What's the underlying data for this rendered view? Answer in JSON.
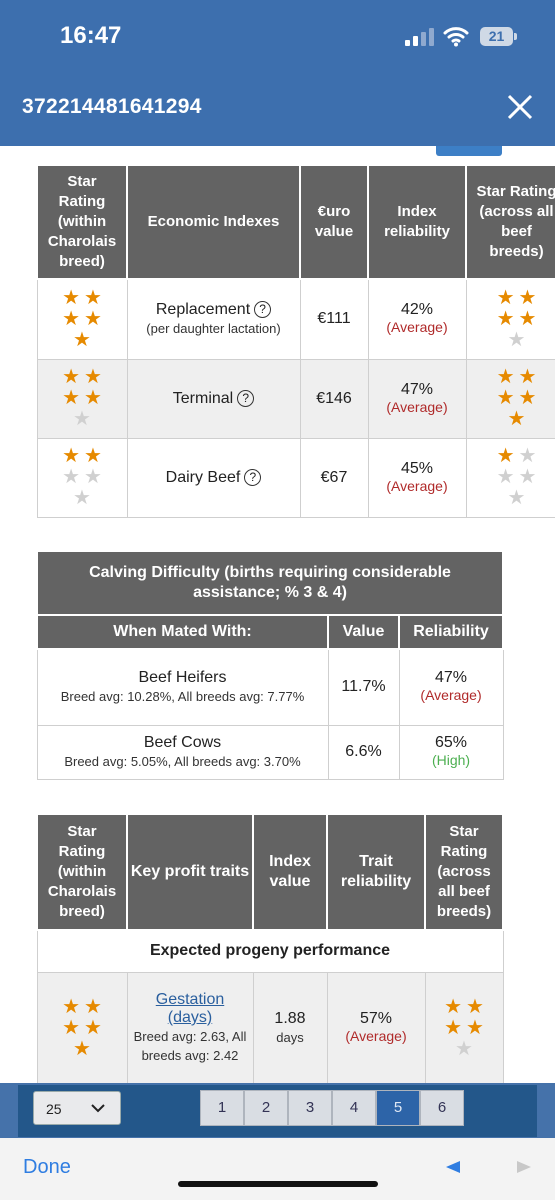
{
  "status": {
    "time": "16:47",
    "battery": "21"
  },
  "header": {
    "title": "372214481641294"
  },
  "economic": {
    "headers": [
      "Star Rating (within Charolais breed)",
      "Economic Indexes",
      "€uro value",
      "Index reliability",
      "Star Rating (across all beef breeds)"
    ],
    "rows": [
      {
        "name": "Replacement",
        "note": "(per daughter lactation)",
        "value": "€111",
        "rel": "42%",
        "rel_label": "(Average)",
        "stars_within": 5,
        "stars_across": 4
      },
      {
        "name": "Terminal",
        "note": "",
        "value": "€146",
        "rel": "47%",
        "rel_label": "(Average)",
        "stars_within": 4,
        "stars_across": 5
      },
      {
        "name": "Dairy Beef",
        "note": "",
        "value": "€67",
        "rel": "45%",
        "rel_label": "(Average)",
        "stars_within": 2,
        "stars_across": 1
      }
    ]
  },
  "calving": {
    "title": "Calving Difficulty (births requiring considerable assistance; % 3 & 4)",
    "headers": [
      "When Mated With:",
      "Value",
      "Reliability"
    ],
    "rows": [
      {
        "name": "Beef Heifers",
        "note": "Breed avg: 10.28%, All breeds avg: 7.77%",
        "value": "11.7%",
        "rel": "47%",
        "rel_label": "(Average)"
      },
      {
        "name": "Beef Cows",
        "note": "Breed avg: 5.05%, All breeds avg: 3.70%",
        "value": "6.6%",
        "rel": "65%",
        "rel_label": "(High)"
      }
    ]
  },
  "profit": {
    "headers": [
      "Star Rating (within Charolais breed)",
      "Key profit traits",
      "Index value",
      "Trait reliability",
      "Star Rating (across all beef breeds)"
    ],
    "section": "Expected progeny performance",
    "rows": [
      {
        "name": "Gestation (days)",
        "note": "Breed avg: 2.63, All breeds avg: 2.42",
        "value": "1.88",
        "unit": "days",
        "rel": "57%",
        "rel_label": "(Average)",
        "stars_within": 5,
        "stars_across": 4
      }
    ]
  },
  "pager": {
    "page_size": "25",
    "pages": [
      "1",
      "2",
      "3",
      "4",
      "5",
      "6"
    ],
    "active_page": "5"
  },
  "toolbar": {
    "done": "Done"
  },
  "colors": {
    "header_blue": "#3d6fae",
    "table_header": "#636363",
    "star": "#e68a00",
    "average": "#b02a2a",
    "high": "#4caf50"
  }
}
